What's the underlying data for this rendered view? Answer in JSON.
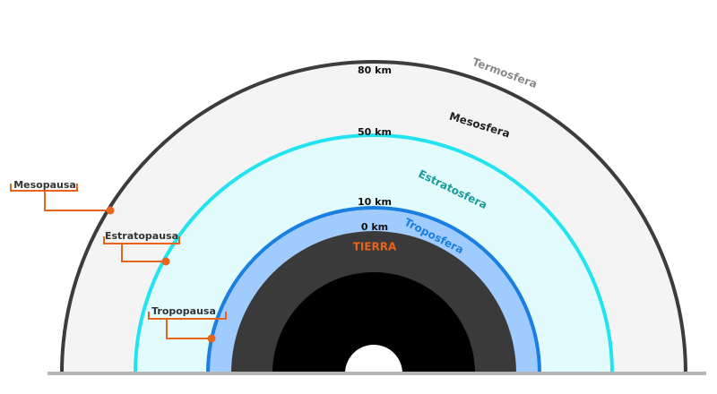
{
  "diagram": {
    "altitudes": [
      "80 km",
      "50 km",
      "10 km",
      "0 km"
    ],
    "earth": "TIERRA",
    "layers": [
      "Termosfera",
      "Mesosfera",
      "Estratosfera",
      "Troposfera"
    ],
    "pauses": [
      "Mesopausa",
      "Estratopausa",
      "Tropopausa"
    ]
  }
}
